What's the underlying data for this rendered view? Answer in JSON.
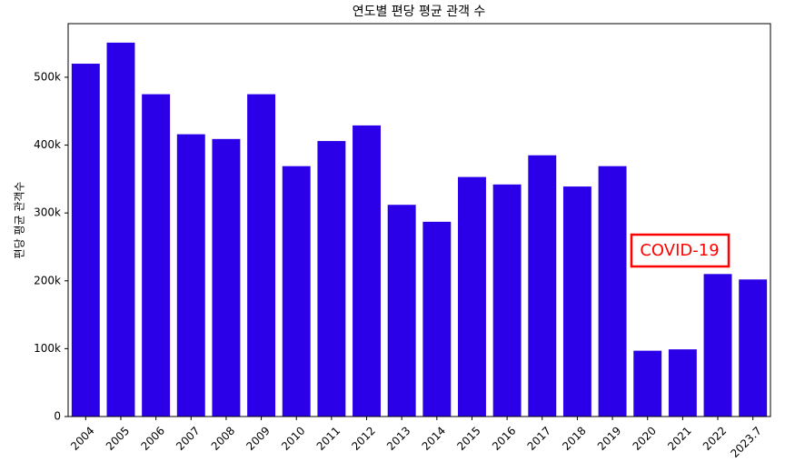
{
  "chart_data": {
    "type": "bar",
    "title": "연도별 편당 평균 관객 수",
    "y_label": "편당 평균 관객수",
    "categories": [
      "2004",
      "2005",
      "2006",
      "2007",
      "2008",
      "2009",
      "2010",
      "2011",
      "2012",
      "2013",
      "2014",
      "2015",
      "2016",
      "2017",
      "2018",
      "2019",
      "2020",
      "2021",
      "2022",
      "2023.7"
    ],
    "values": [
      520000,
      551000,
      475000,
      416000,
      409000,
      475000,
      369000,
      406000,
      429000,
      312000,
      287000,
      353000,
      342000,
      385000,
      339000,
      369000,
      97000,
      99000,
      210000,
      202000
    ],
    "color": "#2b00e8",
    "ylim": [
      0,
      579000
    ],
    "yticks": [
      0,
      {
        "value": 100000,
        "label": "100k"
      },
      {
        "value": 200000,
        "label": "200k"
      },
      {
        "value": 300000,
        "label": "300k"
      },
      {
        "value": 400000,
        "label": "400k"
      },
      {
        "value": 500000,
        "label": "500k"
      }
    ],
    "annotation": "COVID-19",
    "annotation_color": "#ff0000"
  }
}
